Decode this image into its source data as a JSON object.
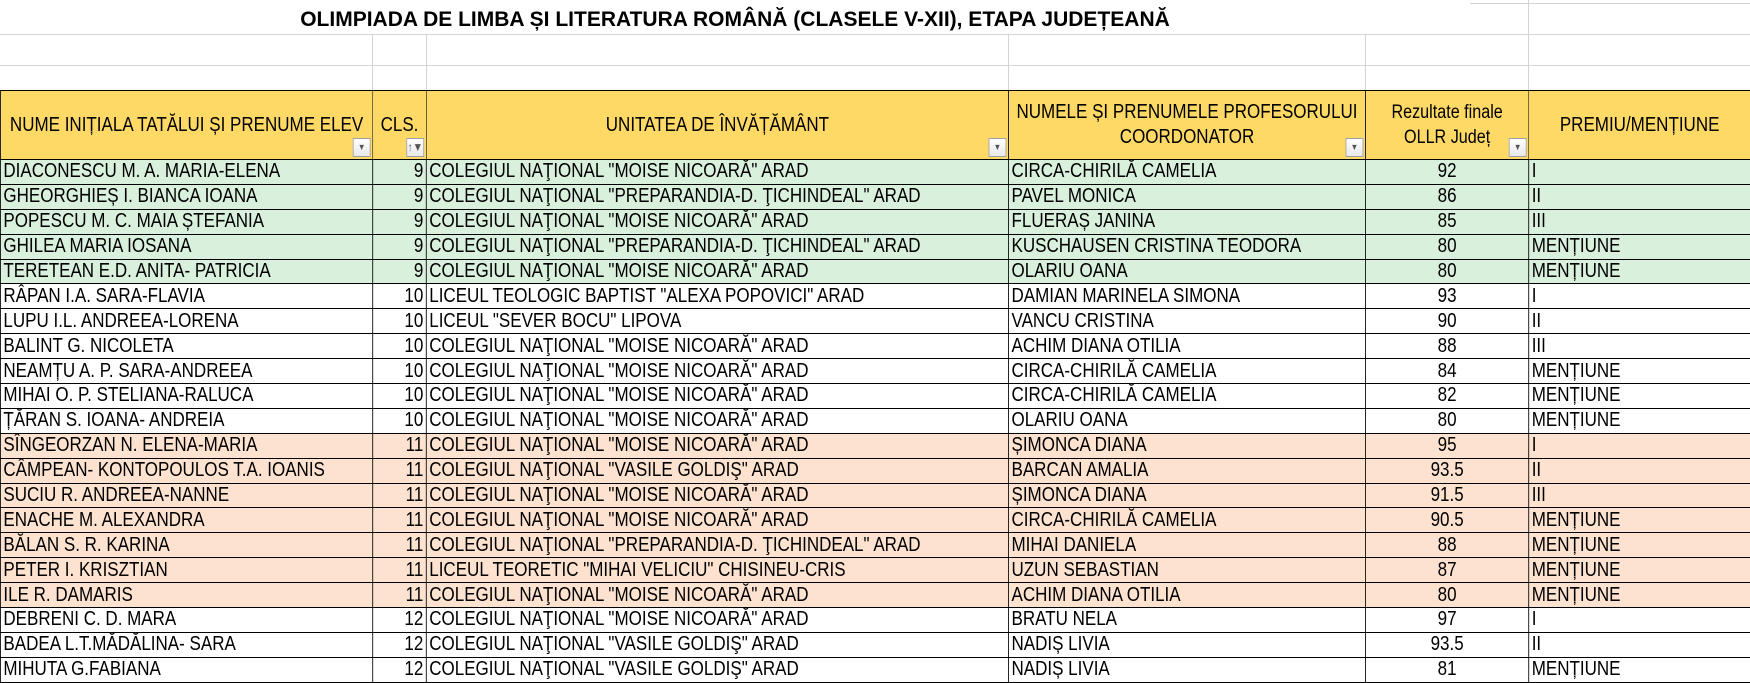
{
  "title": "OLIMPIADA DE LIMBA ȘI LITERATURA ROMÂNĂ (CLASELE V-XII), ETAPA JUDEȚEANĂ",
  "colors": {
    "header": "#ffd966",
    "class9": "#d9f0dc",
    "class11": "#fde2cf"
  },
  "headers": [
    {
      "label": "NUME INIȚIALA TATĂLUI ȘI PRENUME ELEV",
      "filter_icon": "dropdown-arrow-icon"
    },
    {
      "label": "CLS.",
      "filter_icon": "filter-sort-ascending-icon"
    },
    {
      "label": "UNITATEA DE ÎNVĂȚĂMÂNT",
      "filter_icon": "dropdown-arrow-icon"
    },
    {
      "label": "NUMELE ȘI PRENUMELE PROFESORULUI COORDONATOR",
      "filter_icon": "dropdown-arrow-icon"
    },
    {
      "label": "Rezultate finale OLLR Județ",
      "filter_icon": "dropdown-arrow-icon"
    },
    {
      "label": "PREMIU/MENȚIUNE"
    }
  ],
  "rows": [
    [
      "DIACONESCU M. A. MARIA-ELENA",
      "9",
      "COLEGIUL NAŢIONAL \"MOISE NICOARĂ\" ARAD",
      "CIRCA-CHIRILĂ CAMELIA",
      "92",
      "I"
    ],
    [
      "GHEORGHIEȘ  I. BIANCA IOANA",
      "9",
      "COLEGIUL NAŢIONAL \"PREPARANDIA-D. ŢICHINDEAL\" ARAD",
      "PAVEL MONICA",
      "86",
      "II"
    ],
    [
      "POPESCU M. C. MAIA ȘTEFANIA",
      "9",
      "COLEGIUL NAŢIONAL \"MOISE NICOARĂ\" ARAD",
      "FLUERAȘ JANINA",
      "85",
      "III"
    ],
    [
      "GHILEA MARIA IOSANA",
      "9",
      "COLEGIUL NAŢIONAL \"PREPARANDIA-D. ŢICHINDEAL\" ARAD",
      "KUSCHAUSEN CRISTINA TEODORA",
      "80",
      "MENȚIUNE"
    ],
    [
      "TERETEAN E.D. ANITA- PATRICIA",
      "9",
      "COLEGIUL NAŢIONAL \"MOISE NICOARĂ\" ARAD",
      "OLARIU OANA",
      "80",
      "MENȚIUNE"
    ],
    [
      "RÂPAN I.A. SARA-FLAVIA",
      "10",
      "LICEUL TEOLOGIC BAPTIST \"ALEXA POPOVICI\" ARAD",
      "DAMIAN MARINELA SIMONA",
      "93",
      "I"
    ],
    [
      "LUPU I.L. ANDREEA-LORENA",
      "10",
      "LICEUL \"SEVER BOCU\" LIPOVA",
      "VANCU CRISTINA",
      "90",
      "II"
    ],
    [
      "BALINT G. NICOLETA",
      "10",
      "COLEGIUL NAŢIONAL \"MOISE NICOARĂ\" ARAD",
      "ACHIM DIANA OTILIA",
      "88",
      "III"
    ],
    [
      "NEAMȚU A. P. SARA-ANDREEA",
      "10",
      "COLEGIUL NAŢIONAL \"MOISE NICOARĂ\" ARAD",
      "CIRCA-CHIRILĂ CAMELIA",
      "84",
      "MENȚIUNE"
    ],
    [
      "MIHAI O. P. STELIANA-RALUCA",
      "10",
      "COLEGIUL NAŢIONAL \"MOISE NICOARĂ\" ARAD",
      "CIRCA-CHIRILĂ CAMELIA",
      "82",
      "MENȚIUNE"
    ],
    [
      "ȚĂRAN S. IOANA- ANDREIA",
      "10",
      "COLEGIUL NAŢIONAL \"MOISE NICOARĂ\" ARAD",
      "OLARIU OANA",
      "80",
      "MENȚIUNE"
    ],
    [
      "SÎNGEORZAN N. ELENA-MARIA",
      "11",
      "COLEGIUL NAŢIONAL \"MOISE NICOARĂ\" ARAD",
      "ȘIMONCA DIANA",
      "95",
      "I"
    ],
    [
      "CÂMPEAN- KONTOPOULOS T.A. IOANIS",
      "11",
      "COLEGIUL NAŢIONAL \"VASILE GOLDIŞ\" ARAD",
      "BARCAN AMALIA",
      "93.5",
      "II"
    ],
    [
      "SUCIU R. ANDREEA-NANNE",
      "11",
      "COLEGIUL NAŢIONAL \"MOISE NICOARĂ\" ARAD",
      "ȘIMONCA DIANA",
      "91.5",
      "III"
    ],
    [
      "ENACHE M. ALEXANDRA",
      "11",
      "COLEGIUL NAŢIONAL \"MOISE NICOARĂ\" ARAD",
      "CIRCA-CHIRILĂ CAMELIA",
      "90.5",
      "MENȚIUNE"
    ],
    [
      "BĂLAN S. R. KARINA",
      "11",
      "COLEGIUL NAŢIONAL \"PREPARANDIA-D. ŢICHINDEAL\" ARAD",
      "MIHAI DANIELA",
      "88",
      "MENȚIUNE"
    ],
    [
      "PETER I. KRISZTIAN",
      "11",
      "LICEUL TEORETIC \"MIHAI VELICIU\" CHISINEU-CRIS",
      "UZUN SEBASTIAN",
      "87",
      "MENȚIUNE"
    ],
    [
      "ILE R. DAMARIS",
      "11",
      "COLEGIUL NAŢIONAL \"MOISE NICOARĂ\" ARAD",
      "ACHIM DIANA OTILIA",
      "80",
      "MENȚIUNE"
    ],
    [
      "DEBRENI C. D. MARA",
      "12",
      "COLEGIUL NAŢIONAL \"MOISE NICOARĂ\" ARAD",
      "BRATU NELA",
      "97",
      "I"
    ],
    [
      "BADEA L.T.MĂDĂLINA- SARA",
      "12",
      "COLEGIUL NAŢIONAL \"VASILE GOLDIŞ\" ARAD",
      "NADIȘ LIVIA",
      "93.5",
      "II"
    ],
    [
      "MIHUTA G.FABIANA",
      "12",
      "COLEGIUL NAŢIONAL \"VASILE GOLDIŞ\" ARAD",
      "NADIȘ LIVIA",
      "81",
      "MENȚIUNE"
    ]
  ]
}
